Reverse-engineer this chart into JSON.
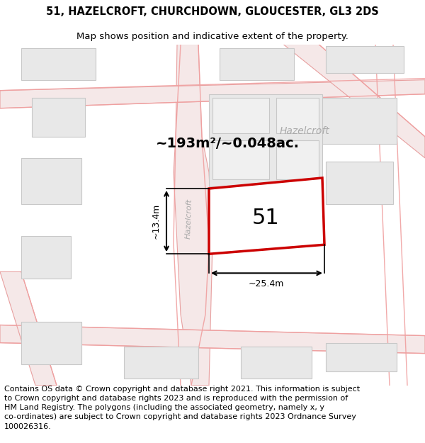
{
  "title_line1": "51, HAZELCROFT, CHURCHDOWN, GLOUCESTER, GL3 2DS",
  "title_line2": "Map shows position and indicative extent of the property.",
  "footer_text": "Contains OS data © Crown copyright and database right 2021. This information is subject\nto Crown copyright and database rights 2023 and is reproduced with the permission of\nHM Land Registry. The polygons (including the associated geometry, namely x, y\nco-ordinates) are subject to Crown copyright and database rights 2023 Ordnance Survey\n100026316.",
  "area_label": "~193m²/~0.048ac.",
  "street_label_road": "Hazelcroft",
  "street_label_vertical": "Hazelcroft",
  "number_label": "51",
  "dim_width": "~25.4m",
  "dim_height": "~13.4m",
  "map_bg": "#ffffff",
  "bld_fill": "#e8e8e8",
  "bld_edge": "#c8c8c8",
  "plot_fill": "#ffffff",
  "plot_edge": "#dd0000",
  "road_fill": "#f5e8e8",
  "road_edge": "#e8a0a0",
  "road_line": "#f0a0a0",
  "title_fontsize": 10.5,
  "subtitle_fontsize": 9.5,
  "footer_fontsize": 8.0,
  "area_fontsize": 14,
  "number_fontsize": 22
}
